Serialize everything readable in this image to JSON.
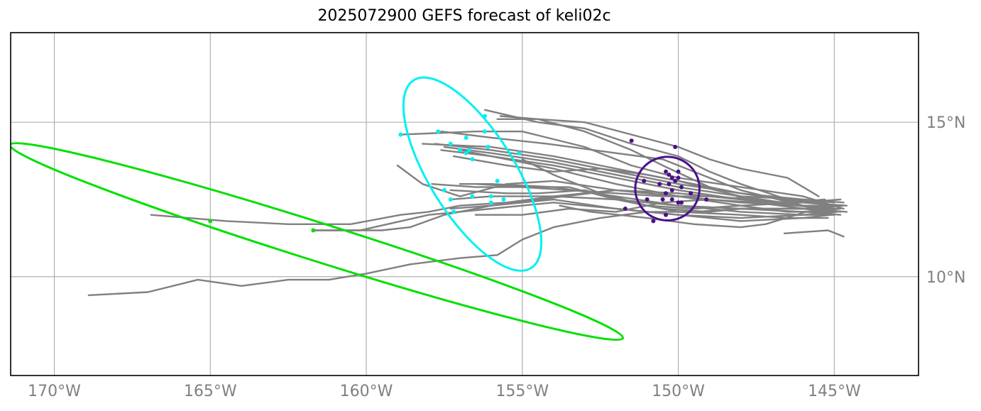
{
  "title": "2025072900 GEFS forecast of keli02c",
  "map": {
    "lon_range": [
      -171.4,
      -142.3
    ],
    "lat_range": [
      6.8,
      17.9
    ],
    "lon_ticks": [
      {
        "value": -170,
        "label": "170°W"
      },
      {
        "value": -165,
        "label": "165°W"
      },
      {
        "value": -160,
        "label": "160°W"
      },
      {
        "value": -155,
        "label": "155°W"
      },
      {
        "value": -150,
        "label": "150°W"
      },
      {
        "value": -145,
        "label": "145°W"
      }
    ],
    "lat_ticks": [
      {
        "value": 15,
        "label": "15°N"
      },
      {
        "value": 10,
        "label": "10°N"
      }
    ],
    "grid": true
  },
  "colors": {
    "track": "#808080",
    "grid": "#b0b0b0",
    "green": "#00e000",
    "cyan": "#00f0f0",
    "purple": "#4b0f8c",
    "tick": "#808080"
  },
  "tracks": [
    [
      [
        -144.7,
        12.4
      ],
      [
        -146,
        12.5
      ],
      [
        -148,
        12.6
      ],
      [
        -150,
        12.9
      ],
      [
        -152,
        13.3
      ],
      [
        -154,
        13.7
      ],
      [
        -156,
        14.0
      ],
      [
        -157.5,
        14.2
      ]
    ],
    [
      [
        -144.8,
        12.3
      ],
      [
        -146,
        12.4
      ],
      [
        -148,
        12.7
      ],
      [
        -150,
        13.0
      ],
      [
        -152,
        13.4
      ],
      [
        -154,
        13.8
      ],
      [
        -156,
        14.1
      ],
      [
        -157.8,
        14.3
      ]
    ],
    [
      [
        -144.9,
        12.2
      ],
      [
        -146,
        12.3
      ],
      [
        -148,
        12.6
      ],
      [
        -150,
        13.1
      ],
      [
        -152,
        13.5
      ],
      [
        -154,
        13.9
      ],
      [
        -156,
        14.2
      ],
      [
        -158.2,
        14.3
      ]
    ],
    [
      [
        -145.0,
        12.1
      ],
      [
        -146,
        12.2
      ],
      [
        -148,
        12.5
      ],
      [
        -150,
        12.8
      ],
      [
        -152,
        13.2
      ],
      [
        -154,
        13.6
      ],
      [
        -156,
        13.9
      ],
      [
        -157.6,
        14.1
      ]
    ],
    [
      [
        -144.8,
        12.5
      ],
      [
        -146,
        12.4
      ],
      [
        -148,
        12.4
      ],
      [
        -150,
        12.6
      ],
      [
        -152,
        13.0
      ],
      [
        -154,
        13.5
      ],
      [
        -156,
        13.9
      ],
      [
        -157.0,
        14.1
      ]
    ],
    [
      [
        -145.0,
        12.0
      ],
      [
        -146,
        12.0
      ],
      [
        -148,
        12.1
      ],
      [
        -150,
        12.3
      ],
      [
        -152,
        12.5
      ],
      [
        -154,
        12.6
      ],
      [
        -156,
        12.6
      ],
      [
        -157.3,
        12.5
      ]
    ],
    [
      [
        -144.7,
        12.3
      ],
      [
        -146,
        12.2
      ],
      [
        -148,
        12.2
      ],
      [
        -150,
        12.3
      ],
      [
        -152,
        12.6
      ],
      [
        -154,
        12.9
      ],
      [
        -156,
        13.0
      ],
      [
        -157.0,
        13.0
      ]
    ],
    [
      [
        -144.9,
        12.1
      ],
      [
        -146,
        12.0
      ],
      [
        -148,
        11.9
      ],
      [
        -150,
        12.0
      ],
      [
        -152,
        12.2
      ],
      [
        -154,
        12.5
      ],
      [
        -156,
        12.3
      ],
      [
        -157.3,
        12.2
      ]
    ],
    [
      [
        -145.1,
        12.0
      ],
      [
        -146,
        11.9
      ],
      [
        -148,
        11.8
      ],
      [
        -150,
        12.0
      ],
      [
        -152,
        12.2
      ],
      [
        -154,
        12.4
      ],
      [
        -156,
        12.2
      ],
      [
        -158,
        12.0
      ],
      [
        -160.2,
        11.5
      ],
      [
        -161.7,
        11.5
      ]
    ],
    [
      [
        -145.5,
        12.6
      ],
      [
        -146.5,
        13.2
      ],
      [
        -148,
        13.5
      ],
      [
        -149,
        13.8
      ],
      [
        -150,
        14.2
      ],
      [
        -151.5,
        14.6
      ],
      [
        -153,
        15.0
      ],
      [
        -154.5,
        15.1
      ],
      [
        -155.7,
        15.2
      ]
    ],
    [
      [
        -145.3,
        12.4
      ],
      [
        -146.5,
        12.5
      ],
      [
        -148,
        13.0
      ],
      [
        -149,
        13.4
      ],
      [
        -150,
        13.9
      ],
      [
        -151.5,
        14.3
      ],
      [
        -153,
        14.8
      ],
      [
        -154.5,
        15.0
      ],
      [
        -156.2,
        15.4
      ]
    ],
    [
      [
        -144.8,
        12.1
      ],
      [
        -146,
        12.3
      ],
      [
        -148,
        12.8
      ],
      [
        -149.5,
        13.4
      ],
      [
        -150.5,
        13.8
      ],
      [
        -152,
        14.0
      ],
      [
        -154.2,
        14.3
      ],
      [
        -156,
        14.5
      ],
      [
        -157.6,
        14.7
      ]
    ],
    [
      [
        -144.7,
        12.2
      ],
      [
        -146,
        12.6
      ],
      [
        -148,
        12.9
      ],
      [
        -150,
        13.2
      ],
      [
        -151.5,
        13.6
      ],
      [
        -153,
        14.2
      ],
      [
        -155,
        14.7
      ],
      [
        -156.5,
        14.7
      ],
      [
        -158.9,
        14.6
      ]
    ],
    [
      [
        -144.6,
        12.3
      ],
      [
        -146,
        12.4
      ],
      [
        -148,
        12.3
      ],
      [
        -149.5,
        12.2
      ],
      [
        -151,
        12.3
      ],
      [
        -152.5,
        12.7
      ],
      [
        -154,
        13.3
      ],
      [
        -155,
        13.8
      ]
    ],
    [
      [
        -145.2,
        11.9
      ],
      [
        -146.5,
        11.9
      ],
      [
        -148,
        12.0
      ],
      [
        -150,
        12.1
      ],
      [
        -151.5,
        12.4
      ],
      [
        -153,
        12.8
      ],
      [
        -154.5,
        12.7
      ],
      [
        -155.5,
        12.7
      ],
      [
        -157.3,
        12.8
      ]
    ],
    [
      [
        -144.8,
        12.2
      ],
      [
        -146,
        12.1
      ],
      [
        -148,
        12.2
      ],
      [
        -149,
        12.1
      ],
      [
        -150.5,
        12.2
      ],
      [
        -152,
        12.5
      ],
      [
        -153.5,
        12.9
      ],
      [
        -154.8,
        12.9
      ],
      [
        -156.5,
        13.0
      ]
    ],
    [
      [
        -145.0,
        12.3
      ],
      [
        -146,
        12.3
      ],
      [
        -147.5,
        12.4
      ],
      [
        -149,
        12.5
      ],
      [
        -150.5,
        12.4
      ],
      [
        -152,
        12.1
      ],
      [
        -153.5,
        12.2
      ],
      [
        -155,
        12.0
      ],
      [
        -156.5,
        12.0
      ]
    ],
    [
      [
        -145.2,
        12.2
      ],
      [
        -146.2,
        12.3
      ],
      [
        -147.5,
        12.5
      ],
      [
        -149,
        12.6
      ],
      [
        -150.5,
        12.6
      ],
      [
        -152,
        12.7
      ],
      [
        -153.5,
        12.8
      ],
      [
        -155,
        12.9
      ],
      [
        -156.5,
        12.9
      ],
      [
        -157.9,
        13.0
      ]
    ],
    [
      [
        -144.8,
        12.0
      ],
      [
        -145.9,
        12.1
      ],
      [
        -147.2,
        11.7
      ],
      [
        -148,
        11.6
      ],
      [
        -149.5,
        11.7
      ],
      [
        -151,
        11.9
      ],
      [
        -152.8,
        12.1
      ],
      [
        -153.8,
        12.3
      ]
    ],
    [
      [
        -145.0,
        12.4
      ],
      [
        -146,
        12.5
      ],
      [
        -148,
        12.7
      ],
      [
        -149.5,
        13.0
      ],
      [
        -151,
        13.3
      ],
      [
        -152.5,
        13.5
      ],
      [
        -154,
        13.4
      ],
      [
        -155.5,
        13.6
      ],
      [
        -157.2,
        13.9
      ]
    ],
    [
      [
        -144.6,
        12.1
      ],
      [
        -146,
        12.2
      ],
      [
        -147.5,
        12.4
      ],
      [
        -149,
        12.9
      ],
      [
        -150.5,
        13.6
      ],
      [
        -151.5,
        14.1
      ],
      [
        -153,
        14.7
      ],
      [
        -154.5,
        15.1
      ],
      [
        -155.8,
        15.1
      ]
    ],
    [
      [
        -144.7,
        11.3
      ],
      [
        -145.2,
        11.5
      ],
      [
        -146.6,
        11.4
      ]
    ],
    [
      [
        -144.9,
        12.2
      ],
      [
        -146.5,
        12.2
      ],
      [
        -148,
        12.2
      ],
      [
        -149.5,
        12.1
      ],
      [
        -151,
        12.1
      ],
      [
        -152.5,
        11.9
      ],
      [
        -154,
        11.6
      ],
      [
        -155,
        11.2
      ],
      [
        -155.8,
        10.7
      ],
      [
        -157,
        10.6
      ],
      [
        -158.6,
        10.4
      ],
      [
        -160,
        10.1
      ],
      [
        -161.2,
        9.9
      ],
      [
        -162.5,
        9.9
      ],
      [
        -164,
        9.7
      ],
      [
        -165.4,
        9.9
      ],
      [
        -167,
        9.5
      ],
      [
        -168.9,
        9.4
      ]
    ],
    [
      [
        -145.1,
        12.1
      ],
      [
        -146.5,
        12.1
      ],
      [
        -148,
        12.3
      ],
      [
        -150,
        12.6
      ],
      [
        -152,
        12.8
      ],
      [
        -154,
        12.6
      ],
      [
        -155.5,
        12.4
      ],
      [
        -157,
        12.3
      ],
      [
        -158,
        12.1
      ],
      [
        -158.9,
        12.0
      ],
      [
        -160.5,
        11.7
      ],
      [
        -162.5,
        11.7
      ],
      [
        -164.5,
        11.8
      ],
      [
        -166.9,
        12.0
      ]
    ],
    [
      [
        -144.8,
        12.3
      ],
      [
        -146.2,
        12.3
      ],
      [
        -148,
        12.4
      ],
      [
        -150,
        12.6
      ],
      [
        -152,
        12.8
      ],
      [
        -154.5,
        12.5
      ],
      [
        -156,
        12.3
      ],
      [
        -157.5,
        12.0
      ],
      [
        -158.6,
        11.6
      ],
      [
        -159.5,
        11.5
      ],
      [
        -161.7,
        11.5
      ]
    ],
    [
      [
        -145.3,
        12.5
      ],
      [
        -146.5,
        12.4
      ],
      [
        -148,
        12.5
      ],
      [
        -150,
        12.7
      ],
      [
        -152,
        12.8
      ],
      [
        -154,
        13.1
      ],
      [
        -155.5,
        13.0
      ],
      [
        -157,
        12.6
      ],
      [
        -158.2,
        13.0
      ],
      [
        -159,
        13.6
      ]
    ]
  ],
  "purple_points": [
    [
      -151.5,
      14.4
    ],
    [
      -150.1,
      14.2
    ],
    [
      -150.4,
      13.4
    ],
    [
      -150.0,
      13.4
    ],
    [
      -150.3,
      13.3
    ],
    [
      -150.2,
      13.2
    ],
    [
      -150.0,
      13.2
    ],
    [
      -150.1,
      13.1
    ],
    [
      -151.1,
      13.1
    ],
    [
      -150.6,
      13.0
    ],
    [
      -150.3,
      13.0
    ],
    [
      -149.9,
      12.9
    ],
    [
      -150.2,
      12.8
    ],
    [
      -150.4,
      12.7
    ],
    [
      -149.6,
      12.7
    ],
    [
      -150.5,
      12.5
    ],
    [
      -150.2,
      12.5
    ],
    [
      -149.9,
      12.4
    ],
    [
      -151.0,
      12.5
    ],
    [
      -149.1,
      12.5
    ],
    [
      -150.0,
      12.4
    ],
    [
      -151.7,
      12.2
    ],
    [
      -150.4,
      12.0
    ],
    [
      -150.8,
      11.8
    ]
  ],
  "cyan_points": [
    [
      -156.2,
      15.2
    ],
    [
      -158.9,
      14.6
    ],
    [
      -157.7,
      14.7
    ],
    [
      -156.2,
      14.7
    ],
    [
      -156.8,
      14.5
    ],
    [
      -157.3,
      14.3
    ],
    [
      -156.1,
      14.2
    ],
    [
      -157.0,
      14.1
    ],
    [
      -156.7,
      14.1
    ],
    [
      -156.8,
      14.0
    ],
    [
      -155.1,
      14.0
    ],
    [
      -156.6,
      13.8
    ],
    [
      -155.8,
      13.1
    ],
    [
      -157.5,
      12.8
    ],
    [
      -156.0,
      12.6
    ],
    [
      -156.6,
      12.6
    ],
    [
      -157.3,
      12.5
    ],
    [
      -155.6,
      12.5
    ],
    [
      -156.0,
      12.4
    ],
    [
      -157.2,
      12.1
    ]
  ],
  "green_points": [
    [
      -165.0,
      11.8
    ],
    [
      -161.7,
      11.5
    ]
  ],
  "ellipses": [
    {
      "name": "green-ellipse",
      "color": "green",
      "cx": -161.6,
      "cy": 11.14,
      "rx": 10.3,
      "ry": 0.62,
      "angle": 17.5
    },
    {
      "name": "cyan-ellipse",
      "color": "cyan",
      "cx": -156.6,
      "cy": 13.32,
      "rx": 3.55,
      "ry": 1.38,
      "angle": 58
    },
    {
      "name": "purple-ellipse",
      "color": "purple",
      "cx": -150.35,
      "cy": 12.85,
      "rx": 1.03,
      "ry": 1.03,
      "angle": 0
    }
  ]
}
